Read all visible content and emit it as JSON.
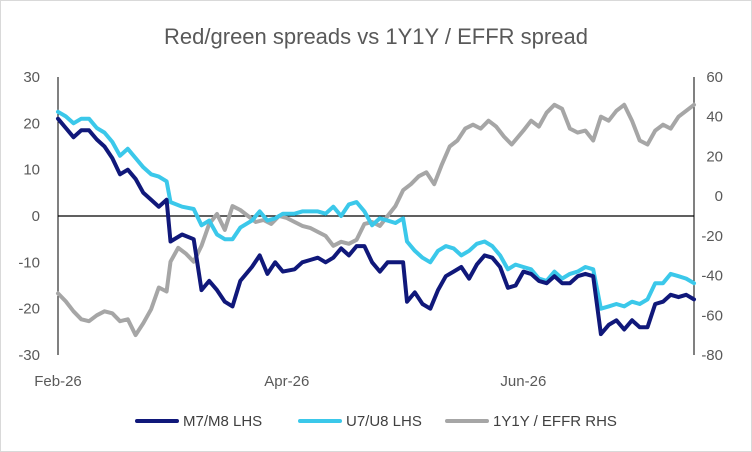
{
  "chart_data": {
    "type": "line",
    "title": "Red/green spreads vs 1Y1Y / EFFR spread",
    "x_tick_labels": [
      "Feb-26",
      "Apr-26",
      "Jun-26"
    ],
    "x_start": "2026-02-01",
    "x_end": "2026-07-15",
    "x_ticks": [
      "2026-02-01",
      "2026-04-01",
      "2026-06-01"
    ],
    "y_left": {
      "min": -30,
      "max": 30,
      "ticks": [
        -30,
        -20,
        -10,
        0,
        10,
        20,
        30
      ]
    },
    "y_right": {
      "min": -80,
      "max": 60,
      "ticks": [
        -80,
        -60,
        -40,
        -20,
        0,
        20,
        40,
        60
      ]
    },
    "zero_line": true,
    "grid": false,
    "legend_position": "bottom",
    "series": [
      {
        "name": "M7/M8 LHS",
        "axis": "left",
        "color": "#10187a",
        "points": [
          [
            "2026-02-01",
            21.0
          ],
          [
            "2026-02-03",
            19.0
          ],
          [
            "2026-02-05",
            17.0
          ],
          [
            "2026-02-07",
            18.5
          ],
          [
            "2026-02-09",
            18.5
          ],
          [
            "2026-02-11",
            16.5
          ],
          [
            "2026-02-13",
            15.0
          ],
          [
            "2026-02-15",
            12.5
          ],
          [
            "2026-02-17",
            9.0
          ],
          [
            "2026-02-19",
            10.0
          ],
          [
            "2026-02-21",
            8.0
          ],
          [
            "2026-02-23",
            5.0
          ],
          [
            "2026-02-25",
            3.5
          ],
          [
            "2026-02-27",
            2.0
          ],
          [
            "2026-03-01",
            3.5
          ],
          [
            "2026-03-02",
            -5.5
          ],
          [
            "2026-03-05",
            -4.0
          ],
          [
            "2026-03-08",
            -5.0
          ],
          [
            "2026-03-10",
            -16.0
          ],
          [
            "2026-03-12",
            -14.0
          ],
          [
            "2026-03-14",
            -16.0
          ],
          [
            "2026-03-16",
            -18.5
          ],
          [
            "2026-03-18",
            -19.5
          ],
          [
            "2026-03-20",
            -14.0
          ],
          [
            "2026-03-23",
            -11.0
          ],
          [
            "2026-03-25",
            -8.5
          ],
          [
            "2026-03-27",
            -12.5
          ],
          [
            "2026-03-29",
            -10.0
          ],
          [
            "2026-03-31",
            -12.0
          ],
          [
            "2026-04-03",
            -11.5
          ],
          [
            "2026-04-05",
            -10.0
          ],
          [
            "2026-04-07",
            -9.5
          ],
          [
            "2026-04-09",
            -9.0
          ],
          [
            "2026-04-11",
            -10.0
          ],
          [
            "2026-04-13",
            -9.0
          ],
          [
            "2026-04-15",
            -7.0
          ],
          [
            "2026-04-17",
            -8.5
          ],
          [
            "2026-04-19",
            -6.5
          ],
          [
            "2026-04-21",
            -6.5
          ],
          [
            "2026-04-23",
            -10.0
          ],
          [
            "2026-04-25",
            -12.0
          ],
          [
            "2026-04-27",
            -10.0
          ],
          [
            "2026-04-29",
            -10.0
          ],
          [
            "2026-05-01",
            -10.0
          ],
          [
            "2026-05-02",
            -18.5
          ],
          [
            "2026-05-04",
            -16.5
          ],
          [
            "2026-05-06",
            -19.0
          ],
          [
            "2026-05-08",
            -20.0
          ],
          [
            "2026-05-10",
            -16.0
          ],
          [
            "2026-05-12",
            -13.0
          ],
          [
            "2026-05-14",
            -12.0
          ],
          [
            "2026-05-16",
            -11.0
          ],
          [
            "2026-05-18",
            -13.5
          ],
          [
            "2026-05-20",
            -10.5
          ],
          [
            "2026-05-22",
            -8.5
          ],
          [
            "2026-05-24",
            -9.0
          ],
          [
            "2026-05-26",
            -11.0
          ],
          [
            "2026-05-28",
            -15.5
          ],
          [
            "2026-05-30",
            -15.0
          ],
          [
            "2026-06-01",
            -12.0
          ],
          [
            "2026-06-03",
            -12.5
          ],
          [
            "2026-06-05",
            -14.0
          ],
          [
            "2026-06-07",
            -14.5
          ],
          [
            "2026-06-09",
            -13.0
          ],
          [
            "2026-06-11",
            -14.5
          ],
          [
            "2026-06-13",
            -14.5
          ],
          [
            "2026-06-15",
            -13.0
          ],
          [
            "2026-06-17",
            -12.5
          ],
          [
            "2026-06-19",
            -13.0
          ],
          [
            "2026-06-21",
            -25.5
          ],
          [
            "2026-06-23",
            -23.5
          ],
          [
            "2026-06-25",
            -22.5
          ],
          [
            "2026-06-27",
            -24.5
          ],
          [
            "2026-06-29",
            -22.5
          ],
          [
            "2026-07-01",
            -24.0
          ],
          [
            "2026-07-03",
            -24.0
          ],
          [
            "2026-07-05",
            -19.0
          ],
          [
            "2026-07-07",
            -18.5
          ],
          [
            "2026-07-09",
            -17.0
          ],
          [
            "2026-07-11",
            -17.5
          ],
          [
            "2026-07-13",
            -17.0
          ],
          [
            "2026-07-15",
            -18.0
          ]
        ]
      },
      {
        "name": "U7/U8 LHS",
        "axis": "left",
        "color": "#3bc8ea",
        "points": [
          [
            "2026-02-01",
            22.5
          ],
          [
            "2026-02-03",
            21.5
          ],
          [
            "2026-02-05",
            20.0
          ],
          [
            "2026-02-07",
            21.0
          ],
          [
            "2026-02-09",
            21.0
          ],
          [
            "2026-02-11",
            19.0
          ],
          [
            "2026-02-13",
            18.0
          ],
          [
            "2026-02-15",
            16.0
          ],
          [
            "2026-02-17",
            13.0
          ],
          [
            "2026-02-19",
            14.5
          ],
          [
            "2026-02-21",
            12.5
          ],
          [
            "2026-02-23",
            10.5
          ],
          [
            "2026-02-25",
            9.0
          ],
          [
            "2026-02-27",
            8.5
          ],
          [
            "2026-03-01",
            7.5
          ],
          [
            "2026-03-02",
            3.0
          ],
          [
            "2026-03-05",
            2.0
          ],
          [
            "2026-03-08",
            1.5
          ],
          [
            "2026-03-10",
            -2.0
          ],
          [
            "2026-03-12",
            -1.0
          ],
          [
            "2026-03-14",
            -4.0
          ],
          [
            "2026-03-16",
            -5.0
          ],
          [
            "2026-03-18",
            -5.0
          ],
          [
            "2026-03-20",
            -2.5
          ],
          [
            "2026-03-23",
            -1.0
          ],
          [
            "2026-03-25",
            1.0
          ],
          [
            "2026-03-27",
            -1.0
          ],
          [
            "2026-03-29",
            -0.5
          ],
          [
            "2026-03-31",
            0.5
          ],
          [
            "2026-04-03",
            0.5
          ],
          [
            "2026-04-05",
            1.0
          ],
          [
            "2026-04-07",
            1.0
          ],
          [
            "2026-04-09",
            1.0
          ],
          [
            "2026-04-11",
            0.5
          ],
          [
            "2026-04-13",
            2.0
          ],
          [
            "2026-04-15",
            0.0
          ],
          [
            "2026-04-17",
            2.5
          ],
          [
            "2026-04-19",
            3.0
          ],
          [
            "2026-04-21",
            1.0
          ],
          [
            "2026-04-23",
            -2.0
          ],
          [
            "2026-04-25",
            -0.5
          ],
          [
            "2026-04-27",
            -1.0
          ],
          [
            "2026-04-29",
            -1.5
          ],
          [
            "2026-05-01",
            -0.5
          ],
          [
            "2026-05-02",
            -5.5
          ],
          [
            "2026-05-04",
            -7.5
          ],
          [
            "2026-05-06",
            -9.0
          ],
          [
            "2026-05-08",
            -10.0
          ],
          [
            "2026-05-10",
            -7.5
          ],
          [
            "2026-05-12",
            -6.5
          ],
          [
            "2026-05-14",
            -7.0
          ],
          [
            "2026-05-16",
            -8.5
          ],
          [
            "2026-05-18",
            -7.5
          ],
          [
            "2026-05-20",
            -6.0
          ],
          [
            "2026-05-22",
            -5.5
          ],
          [
            "2026-05-24",
            -6.5
          ],
          [
            "2026-05-26",
            -8.5
          ],
          [
            "2026-05-28",
            -11.5
          ],
          [
            "2026-05-30",
            -10.5
          ],
          [
            "2026-06-01",
            -11.0
          ],
          [
            "2026-06-03",
            -11.5
          ],
          [
            "2026-06-05",
            -13.5
          ],
          [
            "2026-06-07",
            -14.0
          ],
          [
            "2026-06-09",
            -12.0
          ],
          [
            "2026-06-11",
            -13.5
          ],
          [
            "2026-06-13",
            -12.5
          ],
          [
            "2026-06-15",
            -12.0
          ],
          [
            "2026-06-17",
            -11.0
          ],
          [
            "2026-06-19",
            -11.5
          ],
          [
            "2026-06-21",
            -20.0
          ],
          [
            "2026-06-23",
            -19.5
          ],
          [
            "2026-06-25",
            -19.0
          ],
          [
            "2026-06-27",
            -19.5
          ],
          [
            "2026-06-29",
            -18.5
          ],
          [
            "2026-07-01",
            -19.0
          ],
          [
            "2026-07-03",
            -18.0
          ],
          [
            "2026-07-05",
            -14.5
          ],
          [
            "2026-07-07",
            -14.5
          ],
          [
            "2026-07-09",
            -12.5
          ],
          [
            "2026-07-11",
            -13.0
          ],
          [
            "2026-07-13",
            -13.5
          ],
          [
            "2026-07-15",
            -14.5
          ]
        ]
      },
      {
        "name": "1Y1Y / EFFR RHS",
        "axis": "right",
        "color": "#a6a6a6",
        "points": [
          [
            "2026-02-01",
            -49
          ],
          [
            "2026-02-03",
            -53
          ],
          [
            "2026-02-05",
            -58
          ],
          [
            "2026-02-07",
            -62
          ],
          [
            "2026-02-09",
            -63
          ],
          [
            "2026-02-11",
            -60
          ],
          [
            "2026-02-13",
            -58
          ],
          [
            "2026-02-15",
            -59
          ],
          [
            "2026-02-17",
            -63
          ],
          [
            "2026-02-19",
            -62
          ],
          [
            "2026-02-21",
            -70
          ],
          [
            "2026-02-23",
            -64
          ],
          [
            "2026-02-25",
            -57
          ],
          [
            "2026-02-27",
            -46
          ],
          [
            "2026-03-01",
            -48
          ],
          [
            "2026-03-02",
            -33
          ],
          [
            "2026-03-04",
            -26
          ],
          [
            "2026-03-06",
            -29
          ],
          [
            "2026-03-08",
            -33
          ],
          [
            "2026-03-10",
            -25
          ],
          [
            "2026-03-12",
            -14
          ],
          [
            "2026-03-14",
            -9
          ],
          [
            "2026-03-16",
            -17
          ],
          [
            "2026-03-18",
            -5
          ],
          [
            "2026-03-20",
            -7
          ],
          [
            "2026-03-22",
            -10
          ],
          [
            "2026-03-24",
            -13
          ],
          [
            "2026-03-26",
            -12
          ],
          [
            "2026-03-28",
            -14
          ],
          [
            "2026-03-30",
            -10
          ],
          [
            "2026-04-01",
            -11
          ],
          [
            "2026-04-03",
            -13
          ],
          [
            "2026-04-05",
            -15
          ],
          [
            "2026-04-07",
            -16
          ],
          [
            "2026-04-09",
            -18
          ],
          [
            "2026-04-11",
            -20
          ],
          [
            "2026-04-13",
            -25
          ],
          [
            "2026-04-15",
            -23
          ],
          [
            "2026-04-17",
            -24
          ],
          [
            "2026-04-19",
            -22
          ],
          [
            "2026-04-21",
            -14
          ],
          [
            "2026-04-23",
            -13
          ],
          [
            "2026-04-25",
            -15
          ],
          [
            "2026-04-27",
            -10
          ],
          [
            "2026-04-29",
            -5
          ],
          [
            "2026-05-01",
            3
          ],
          [
            "2026-05-03",
            6
          ],
          [
            "2026-05-05",
            10
          ],
          [
            "2026-05-07",
            12
          ],
          [
            "2026-05-09",
            6
          ],
          [
            "2026-05-11",
            16
          ],
          [
            "2026-05-13",
            25
          ],
          [
            "2026-05-15",
            28
          ],
          [
            "2026-05-17",
            34
          ],
          [
            "2026-05-19",
            36
          ],
          [
            "2026-05-21",
            34
          ],
          [
            "2026-05-23",
            38
          ],
          [
            "2026-05-25",
            35
          ],
          [
            "2026-05-27",
            30
          ],
          [
            "2026-05-29",
            26
          ],
          [
            "2026-06-01",
            33
          ],
          [
            "2026-06-03",
            38
          ],
          [
            "2026-06-05",
            35
          ],
          [
            "2026-06-07",
            42
          ],
          [
            "2026-06-09",
            46
          ],
          [
            "2026-06-11",
            44
          ],
          [
            "2026-06-13",
            34
          ],
          [
            "2026-06-15",
            32
          ],
          [
            "2026-06-17",
            33
          ],
          [
            "2026-06-19",
            28
          ],
          [
            "2026-06-21",
            40
          ],
          [
            "2026-06-23",
            38
          ],
          [
            "2026-06-25",
            43
          ],
          [
            "2026-06-27",
            46
          ],
          [
            "2026-06-29",
            38
          ],
          [
            "2026-07-01",
            28
          ],
          [
            "2026-07-03",
            26
          ],
          [
            "2026-07-05",
            33
          ],
          [
            "2026-07-07",
            36
          ],
          [
            "2026-07-09",
            34
          ],
          [
            "2026-07-11",
            40
          ],
          [
            "2026-07-13",
            43
          ],
          [
            "2026-07-15",
            46
          ]
        ]
      }
    ]
  }
}
